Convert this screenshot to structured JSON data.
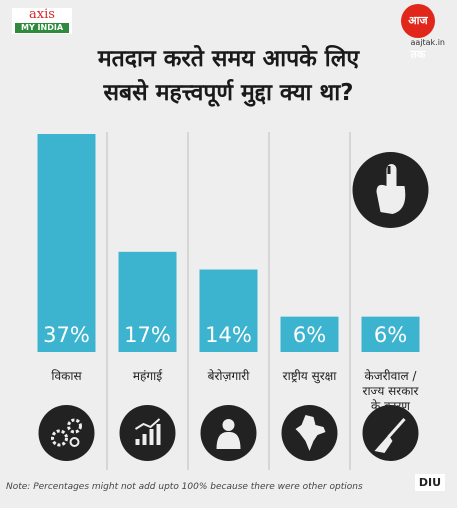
{
  "logos": {
    "left_top": "axis",
    "left_bottom": "MY INDIA",
    "right_circle": "आज तक",
    "right_url": "aajtak.in",
    "corner": "DIU"
  },
  "title_line1": "मतदान करते समय आपके लिए",
  "title_line2": "सबसे महत्त्वपूर्ण मुद्दा क्या था?",
  "note": "Note: Percentages might not add upto 100% because there were other options",
  "colors": {
    "bar": "#3cb4cf",
    "background": "#eeeeee",
    "icon_bg": "#222222"
  },
  "icons": [
    "gears-icon",
    "growth-chart-icon",
    "worried-person-icon",
    "india-map-icon",
    "broom-icon"
  ],
  "chart_data": {
    "type": "bar",
    "categories": [
      "विकास",
      "महंगाई",
      "बेरोज़गारी",
      "राष्ट्रीय सुरक्षा",
      "केजरीवाल / राज्य सरकार के कारण"
    ],
    "values": [
      37,
      17,
      14,
      6,
      6
    ],
    "data_labels": [
      "37%",
      "17%",
      "14%",
      "6%",
      "6%"
    ],
    "title": "मतदान करते समय आपके लिए सबसे महत्त्वपूर्ण मुद्दा क्या था?",
    "xlabel": "",
    "ylabel": ""
  }
}
